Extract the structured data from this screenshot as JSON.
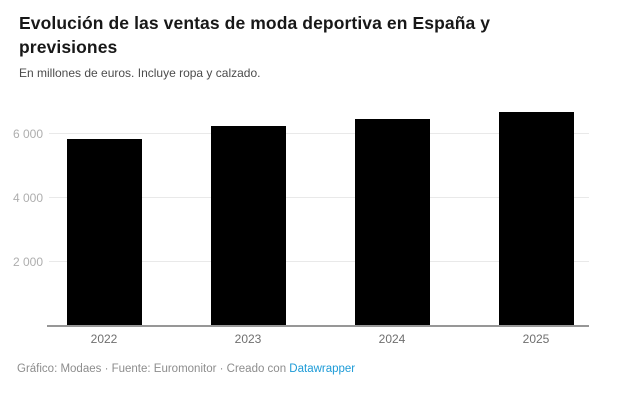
{
  "header": {
    "title": "Evolución de las ventas de moda deportiva en España y previsiones",
    "subtitle": "En millones de euros. Incluye ropa y calzado."
  },
  "chart_data": {
    "type": "bar",
    "categories": [
      "2022",
      "2023",
      "2024",
      "2025"
    ],
    "values": [
      5820,
      6225,
      6460,
      6660
    ],
    "title": "Evolución de las ventas de moda deportiva en España y previsiones",
    "subtitle": "En millones de euros. Incluye ropa y calzado.",
    "xlabel": "",
    "ylabel": "",
    "ylim": [
      0,
      7000
    ],
    "yticks": [
      {
        "value": 2000,
        "label": "2 000"
      },
      {
        "value": 4000,
        "label": "4 000"
      },
      {
        "value": 6000,
        "label": "6 000"
      }
    ],
    "grid": true,
    "legend": "none",
    "bar_color": "#000000"
  },
  "footer": {
    "credit_prefix": "Gráfico: Modaes · Fuente: Euromonitor · Creado con ",
    "link_label": "Datawrapper",
    "link_color": "#1d9bd7"
  }
}
